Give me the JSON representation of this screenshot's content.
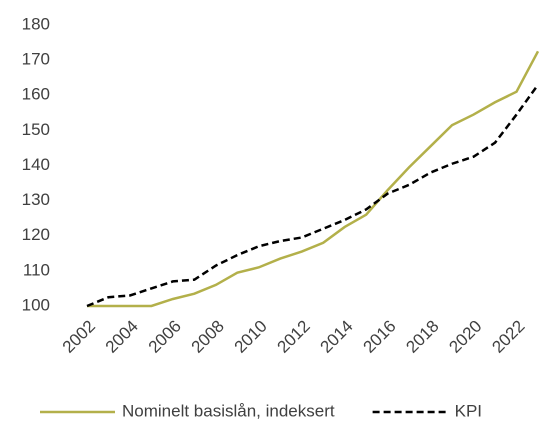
{
  "chart_data": {
    "type": "line",
    "x": [
      2002,
      2003,
      2004,
      2005,
      2006,
      2007,
      2008,
      2009,
      2010,
      2011,
      2012,
      2013,
      2014,
      2015,
      2016,
      2017,
      2018,
      2019,
      2020,
      2021,
      2022,
      2023
    ],
    "series": [
      {
        "name": "Nominelt basislån, indeksert",
        "color": "#b3b04a",
        "dash": "solid",
        "values": [
          100,
          100,
          100,
          100,
          102,
          103.5,
          106,
          109.5,
          111,
          113.5,
          115.5,
          118,
          122.5,
          126,
          133,
          139.5,
          145.5,
          151.5,
          154.5,
          158,
          161,
          172.5
        ]
      },
      {
        "name": "KPI",
        "color": "#000000",
        "dash": "dashed",
        "values": [
          100,
          102.5,
          103,
          105,
          107,
          107.5,
          111.5,
          114.5,
          117,
          118.5,
          119.5,
          122,
          124.5,
          127.5,
          132,
          134.5,
          138,
          140.5,
          142.5,
          146.5,
          154.5,
          163
        ]
      }
    ],
    "xlim": [
      2002,
      2023
    ],
    "xticks": [
      2002,
      2004,
      2006,
      2008,
      2010,
      2012,
      2014,
      2016,
      2018,
      2020,
      2022
    ],
    "ylim": [
      100,
      180
    ],
    "yticks": [
      100,
      110,
      120,
      130,
      140,
      150,
      160,
      170,
      180
    ],
    "grid": false,
    "legend": "bottom"
  }
}
